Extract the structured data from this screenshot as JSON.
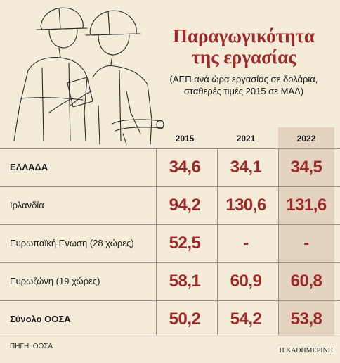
{
  "title": "Παραγωγικότητα της εργασίας",
  "subtitle": "(ΑΕΠ ανά ώρα εργασίας σε δολάρια, σταθερές τιμές 2015 σε ΜΑΔ)",
  "columns": [
    "2015",
    "2021",
    "2022"
  ],
  "rows": [
    {
      "label": "ΕΛΛΑΔΑ",
      "bold": true,
      "values": [
        "34,6",
        "34,1",
        "34,5"
      ]
    },
    {
      "label": "Ιρλανδία",
      "bold": false,
      "values": [
        "94,2",
        "130,6",
        "131,6"
      ]
    },
    {
      "label": "Ευρωπαϊκή Ενωση (28 χώρες)",
      "bold": false,
      "values": [
        "52,5",
        "-",
        "-"
      ]
    },
    {
      "label": "Ευρωζώνη (19 χώρες)",
      "bold": false,
      "values": [
        "58,1",
        "60,9",
        "60,8"
      ]
    },
    {
      "label": "Σύνολο ΟΟΣΑ",
      "bold": true,
      "values": [
        "50,2",
        "54,2",
        "53,8"
      ]
    }
  ],
  "source": "ΠΗΓΗ: ΟΟΣΑ",
  "brand": "Η ΚΑΘΗΜΕΡΙΝΗ",
  "colors": {
    "accent": "#9c2a2a",
    "background": "#f4ebd8",
    "highlight": "#e4d4bf"
  },
  "chart_data": {
    "type": "table",
    "title": "Παραγωγικότητα της εργασίας",
    "columns": [
      "2015",
      "2021",
      "2022"
    ],
    "rows": [
      {
        "label": "ΕΛΛΑΔΑ",
        "values": [
          34.6,
          34.1,
          34.5
        ]
      },
      {
        "label": "Ιρλανδία",
        "values": [
          94.2,
          130.6,
          131.6
        ]
      },
      {
        "label": "Ευρωπαϊκή Ενωση (28 χώρες)",
        "values": [
          52.5,
          null,
          null
        ]
      },
      {
        "label": "Ευρωζώνη (19 χώρες)",
        "values": [
          58.1,
          60.9,
          60.8
        ]
      },
      {
        "label": "Σύνολο ΟΟΣΑ",
        "values": [
          50.2,
          54.2,
          53.8
        ]
      }
    ]
  }
}
